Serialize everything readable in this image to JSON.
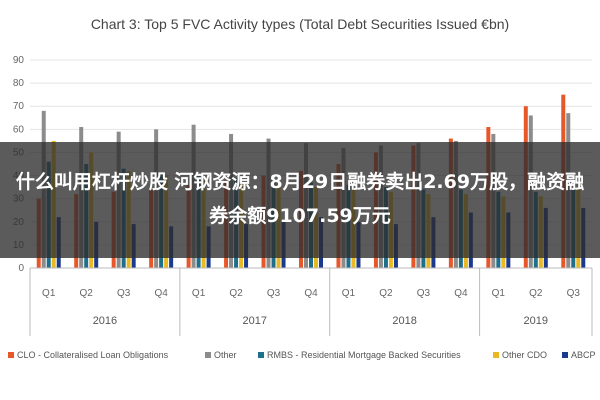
{
  "overlay": {
    "headline": "什么叫用杠杆炒股 河钢资源：8月29日融券卖出2.69万股，融资融券余额9107.59万元"
  },
  "chart_data": {
    "type": "bar",
    "title": "Chart 3: Top 5 FVC Activity types (Total Debt Securities Issued €bn)",
    "xlabel": "",
    "ylabel": "",
    "ylim": [
      0,
      90
    ],
    "yticks": [
      0,
      10,
      20,
      30,
      40,
      50,
      60,
      70,
      80,
      90
    ],
    "grid": true,
    "legend_position": "bottom",
    "categories": [
      "Q1",
      "Q2",
      "Q3",
      "Q4",
      "Q1",
      "Q2",
      "Q3",
      "Q4",
      "Q1",
      "Q2",
      "Q3",
      "Q4",
      "Q1",
      "Q2",
      "Q3"
    ],
    "groups": [
      {
        "label": "2016",
        "count": 4
      },
      {
        "label": "2017",
        "count": 4
      },
      {
        "label": "2018",
        "count": 4
      },
      {
        "label": "2019",
        "count": 3
      }
    ],
    "series": [
      {
        "name": "CLO - Collateralised Loan Obligations",
        "color": "#e8572a",
        "values": [
          30,
          32,
          33,
          34,
          36,
          38,
          40,
          42,
          45,
          50,
          53,
          56,
          61,
          70,
          75
        ]
      },
      {
        "name": "Other",
        "color": "#8c8c8c",
        "values": [
          68,
          61,
          59,
          60,
          62,
          58,
          56,
          54,
          52,
          53,
          54,
          55,
          58,
          66,
          67
        ]
      },
      {
        "name": "RMBS - Residential Mortgage Backed Securities",
        "color": "#1f6f8b",
        "values": [
          46,
          45,
          43,
          41,
          40,
          39,
          38,
          37,
          36,
          35,
          34,
          34,
          33,
          33,
          34
        ]
      },
      {
        "name": "Other CDO",
        "color": "#e8b923",
        "values": [
          55,
          50,
          42,
          40,
          38,
          37,
          36,
          35,
          34,
          33,
          32,
          32,
          31,
          31,
          35
        ]
      },
      {
        "name": "ABCP",
        "color": "#1a3a8c",
        "values": [
          22,
          20,
          19,
          18,
          18,
          19,
          21,
          22,
          20,
          19,
          22,
          24,
          24,
          26,
          26
        ]
      }
    ],
    "colors": {
      "grid": "#e4e4e4",
      "axis": "#bbbbbb",
      "title": "#444444"
    }
  }
}
